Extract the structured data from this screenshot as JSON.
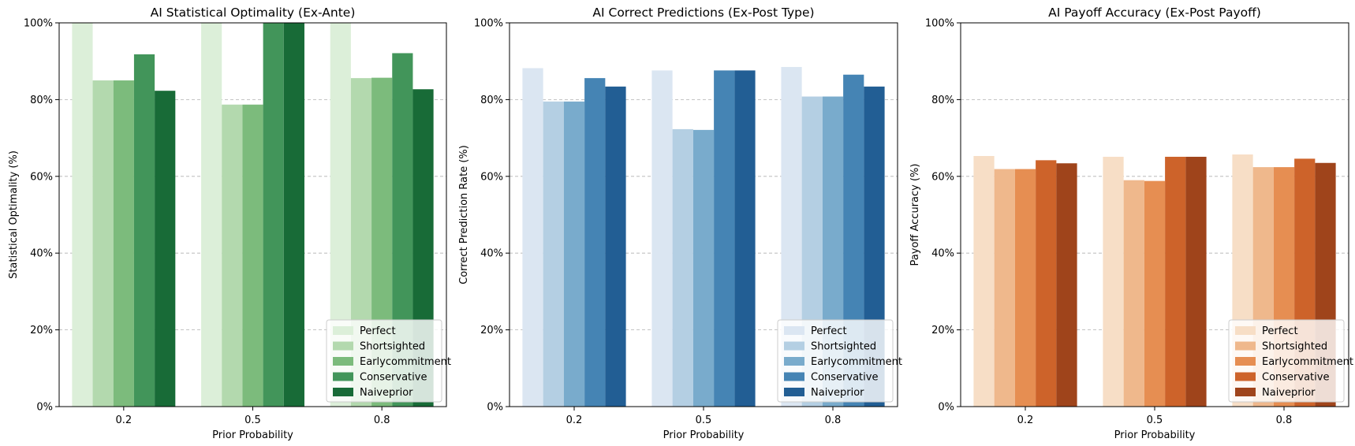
{
  "chart_data": [
    {
      "type": "bar",
      "title": "AI Statistical Optimality (Ex-Ante)",
      "xlabel": "Prior Probability",
      "ylabel": "Statistical Optimality (%)",
      "categories": [
        "0.2",
        "0.5",
        "0.8"
      ],
      "ylim": [
        0,
        100
      ],
      "yticks": [
        "0%",
        "20%",
        "40%",
        "60%",
        "80%",
        "100%"
      ],
      "grid": "horizontal dashed",
      "legend_position": "lower-right",
      "series": [
        {
          "name": "Perfect",
          "color": "#dcefd9",
          "values": [
            100,
            100,
            100
          ]
        },
        {
          "name": "Shortsighted",
          "color": "#b3d9ae",
          "values": [
            85,
            78.7,
            85.6
          ]
        },
        {
          "name": "Earlycommitment",
          "color": "#7cbb7c",
          "values": [
            85,
            78.7,
            85.7
          ]
        },
        {
          "name": "Conservative",
          "color": "#42955a",
          "values": [
            91.8,
            100,
            92.1
          ]
        },
        {
          "name": "Naiveprior",
          "color": "#186b37",
          "values": [
            82.3,
            100,
            82.7
          ]
        }
      ]
    },
    {
      "type": "bar",
      "title": "AI Correct Predictions (Ex-Post Type)",
      "xlabel": "Prior Probability",
      "ylabel": "Correct Prediction Rate (%)",
      "categories": [
        "0.2",
        "0.5",
        "0.8"
      ],
      "ylim": [
        0,
        100
      ],
      "yticks": [
        "0%",
        "20%",
        "40%",
        "60%",
        "80%",
        "100%"
      ],
      "grid": "horizontal dashed",
      "legend_position": "lower-right",
      "series": [
        {
          "name": "Perfect",
          "color": "#dbe6f2",
          "values": [
            88.2,
            87.6,
            88.5
          ]
        },
        {
          "name": "Shortsighted",
          "color": "#b4cfe3",
          "values": [
            79.5,
            72.3,
            80.8
          ]
        },
        {
          "name": "Earlycommitment",
          "color": "#79abcc",
          "values": [
            79.5,
            72.1,
            80.8
          ]
        },
        {
          "name": "Conservative",
          "color": "#4584b4",
          "values": [
            85.6,
            87.6,
            86.5
          ]
        },
        {
          "name": "Naiveprior",
          "color": "#225e94",
          "values": [
            83.4,
            87.6,
            83.4
          ]
        }
      ]
    },
    {
      "type": "bar",
      "title": "AI Payoff Accuracy (Ex-Post Payoff)",
      "xlabel": "Prior Probability",
      "ylabel": "Payoff Accuracy (%)",
      "categories": [
        "0.2",
        "0.5",
        "0.8"
      ],
      "ylim": [
        0,
        100
      ],
      "yticks": [
        "0%",
        "20%",
        "40%",
        "60%",
        "80%",
        "100%"
      ],
      "grid": "horizontal dashed",
      "legend_position": "lower-right",
      "series": [
        {
          "name": "Perfect",
          "color": "#f7dec6",
          "values": [
            65.3,
            65.1,
            65.7
          ]
        },
        {
          "name": "Shortsighted",
          "color": "#efb88c",
          "values": [
            61.9,
            59,
            62.4
          ]
        },
        {
          "name": "Earlycommitment",
          "color": "#e68e52",
          "values": [
            61.9,
            58.8,
            62.4
          ]
        },
        {
          "name": "Conservative",
          "color": "#cd632a",
          "values": [
            64.2,
            65.1,
            64.6
          ]
        },
        {
          "name": "Naiveprior",
          "color": "#9f441b",
          "values": [
            63.4,
            65.1,
            63.5
          ]
        }
      ]
    }
  ]
}
